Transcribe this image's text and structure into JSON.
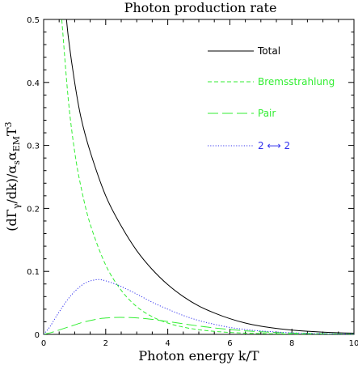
{
  "chart_data": {
    "type": "line",
    "title": "Photon production rate",
    "xlabel": "Photon energy k/T",
    "ylabel": {
      "p1": "(dΓ",
      "sub1": "γ",
      "p2": "/dk)/α",
      "sub2": "s",
      "p3": "α",
      "sub3": "EM",
      "p4": "T",
      "sup4": "3"
    },
    "xlim": [
      0,
      10
    ],
    "ylim": [
      0,
      0.5
    ],
    "xticks": [
      0,
      2,
      4,
      6,
      8,
      10
    ],
    "yticks": [
      0,
      0.1,
      0.2,
      0.3,
      0.4,
      0.5
    ],
    "xtick_labels": [
      "0",
      "2",
      "4",
      "6",
      "8",
      "10"
    ],
    "ytick_labels": [
      "0",
      "0.1",
      "0.2",
      "0.3",
      "0.4",
      "0.5"
    ],
    "legend_position": "top-right",
    "x": [
      0.6,
      0.8,
      1.0,
      1.2,
      1.5,
      2.0,
      2.5,
      3.0,
      3.5,
      4.0,
      4.5,
      5.0,
      5.5,
      6.0,
      6.5,
      7.0,
      7.5,
      8.0,
      8.5,
      9.0,
      9.5,
      10.0
    ],
    "series": [
      {
        "name": "Total",
        "color": "#000000",
        "dash": "solid",
        "x": [
          0.7,
          0.8,
          1.0,
          1.2,
          1.5,
          2.0,
          2.5,
          3.0,
          3.5,
          4.0,
          4.5,
          5.0,
          5.5,
          6.0,
          6.5,
          7.0,
          7.5,
          8.0,
          8.5,
          9.0,
          9.5,
          10.0
        ],
        "y": [
          0.52,
          0.47,
          0.4,
          0.345,
          0.29,
          0.22,
          0.172,
          0.133,
          0.103,
          0.079,
          0.06,
          0.045,
          0.034,
          0.025,
          0.018,
          0.013,
          0.0095,
          0.0068,
          0.005,
          0.0036,
          0.0026,
          0.0019
        ]
      },
      {
        "name": "Bremsstrahlung",
        "color": "#33ee33",
        "dash": "short-dash",
        "x": [
          0.55,
          0.6,
          0.8,
          1.0,
          1.2,
          1.5,
          2.0,
          2.5,
          3.0,
          3.5,
          4.0,
          4.5,
          5.0,
          5.5,
          6.0,
          6.5,
          7.0,
          7.5,
          8.0,
          8.5,
          9.0,
          9.5,
          10.0
        ],
        "y": [
          0.52,
          0.49,
          0.37,
          0.29,
          0.235,
          0.175,
          0.11,
          0.07,
          0.044,
          0.028,
          0.018,
          0.0115,
          0.0074,
          0.0048,
          0.0031,
          0.002,
          0.0013,
          0.00085,
          0.00055,
          0.00036,
          0.00024,
          0.00016,
          0.0001
        ]
      },
      {
        "name": "Pair",
        "color": "#33ee33",
        "dash": "long-dash",
        "x": [
          0.0,
          0.25,
          0.5,
          0.75,
          1.0,
          1.25,
          1.5,
          1.75,
          2.0,
          2.25,
          2.5,
          3.0,
          3.5,
          4.0,
          4.5,
          5.0,
          5.5,
          6.0,
          6.5,
          7.0,
          8.0,
          9.0,
          10.0
        ],
        "y": [
          0.0,
          0.003,
          0.007,
          0.011,
          0.015,
          0.019,
          0.022,
          0.0245,
          0.026,
          0.0268,
          0.027,
          0.0262,
          0.0238,
          0.0204,
          0.0168,
          0.0133,
          0.0102,
          0.0077,
          0.0057,
          0.0041,
          0.0021,
          0.001,
          0.0005
        ]
      },
      {
        "name": "2 ⟷ 2",
        "color": "#3333ee",
        "dash": "dotted",
        "x": [
          0.0,
          0.2,
          0.4,
          0.6,
          0.8,
          1.0,
          1.2,
          1.4,
          1.6,
          1.8,
          2.0,
          2.25,
          2.5,
          3.0,
          3.5,
          4.0,
          4.5,
          5.0,
          5.5,
          6.0,
          6.5,
          7.0,
          8.0,
          9.0,
          10.0
        ],
        "y": [
          0.0,
          0.012,
          0.028,
          0.043,
          0.057,
          0.068,
          0.077,
          0.083,
          0.086,
          0.087,
          0.085,
          0.081,
          0.076,
          0.064,
          0.051,
          0.04,
          0.03,
          0.022,
          0.016,
          0.011,
          0.0078,
          0.0054,
          0.0025,
          0.0011,
          0.0005
        ]
      }
    ],
    "legend": [
      {
        "label": "Total",
        "color": "#000000",
        "dash": "solid"
      },
      {
        "label": "Bremsstrahlung",
        "color": "#33ee33",
        "dash": "short-dash"
      },
      {
        "label": "Pair",
        "color": "#33ee33",
        "dash": "long-dash"
      },
      {
        "label": "2 ⟷ 2",
        "color": "#3333ee",
        "dash": "dotted"
      }
    ]
  }
}
